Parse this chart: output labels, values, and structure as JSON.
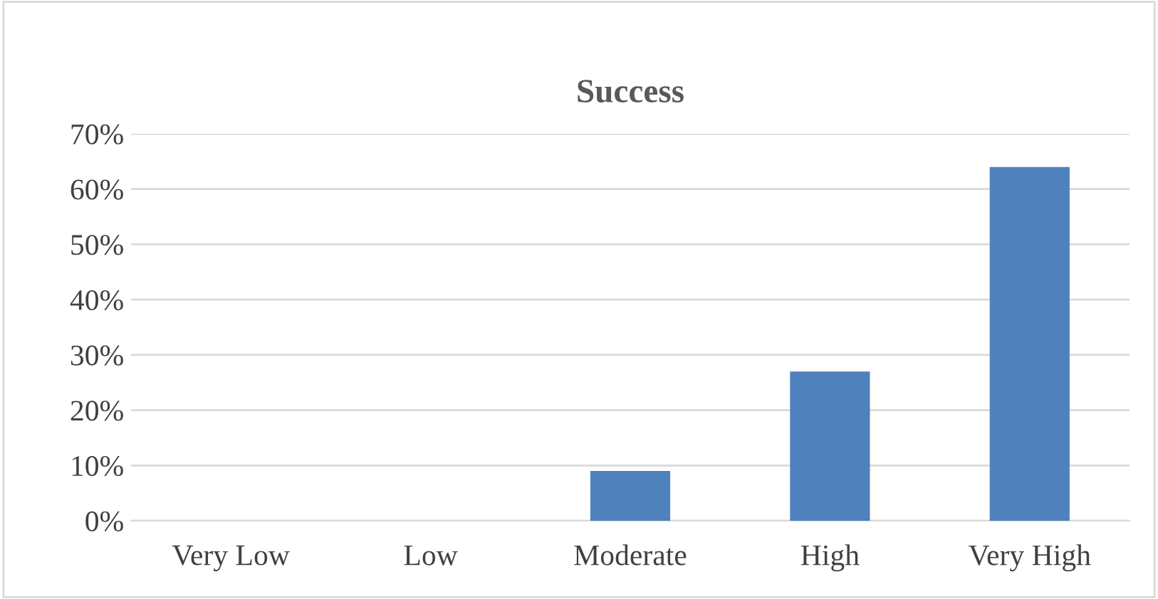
{
  "chart_data": {
    "type": "bar",
    "title": "Success",
    "categories": [
      "Very Low",
      "Low",
      "Moderate",
      "High",
      "Very High"
    ],
    "values": [
      0,
      0,
      9,
      27,
      64
    ],
    "color": "#4f81bd",
    "ylim": [
      0,
      70
    ],
    "yticks": [
      {
        "value": 0,
        "label": "0%"
      },
      {
        "value": 10,
        "label": "10%"
      },
      {
        "value": 20,
        "label": "20%"
      },
      {
        "value": 30,
        "label": "30%"
      },
      {
        "value": 40,
        "label": "40%"
      },
      {
        "value": 50,
        "label": "50%"
      },
      {
        "value": 60,
        "label": "60%"
      },
      {
        "value": 70,
        "label": "70%"
      }
    ],
    "grid": "y",
    "legend": false
  }
}
